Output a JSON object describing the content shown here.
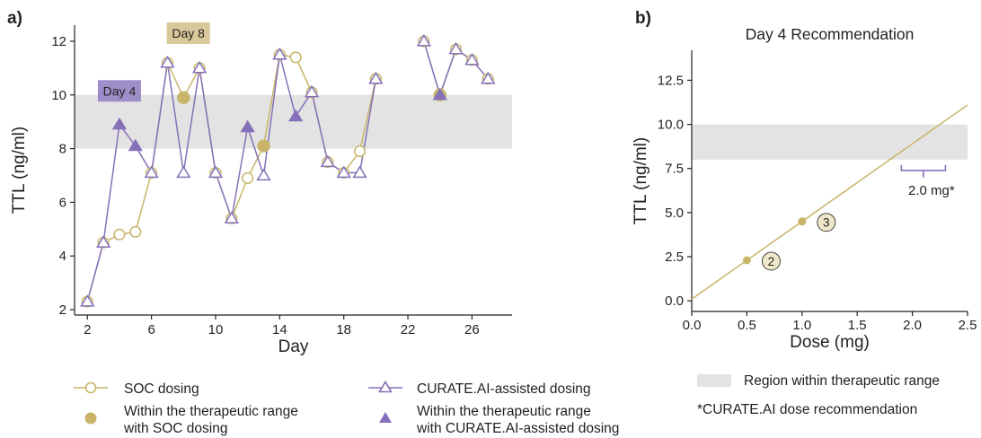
{
  "colors": {
    "soc": "#c8b56a",
    "curate": "#8570b9",
    "band": "#e3e3e3",
    "day8_box": "#d9c99a",
    "day4_box": "#9d8ec9"
  },
  "panels": {
    "a_label": "a)",
    "b_label": "b)"
  },
  "chart_data": [
    {
      "type": "line",
      "panel": "a",
      "xlabel": "Day",
      "ylabel": "TTL (ng/ml)",
      "xlim": [
        1.2,
        28.5
      ],
      "ylim": [
        1.8,
        12.6
      ],
      "xticks": [
        2,
        6,
        10,
        14,
        18,
        22,
        26
      ],
      "yticks": [
        2,
        4,
        6,
        8,
        10,
        12
      ],
      "band": [
        8,
        10
      ],
      "annotations": [
        {
          "text": "Day 8",
          "x": 8.3,
          "y": 12.3
        },
        {
          "text": "Day 4",
          "x": 4.0,
          "y": 10.15
        }
      ],
      "series": [
        {
          "name": "SOC dosing",
          "key": "soc",
          "segments": [
            [
              [
                2,
                2.3
              ],
              [
                3,
                4.5
              ],
              [
                4,
                4.8
              ],
              [
                5,
                4.9
              ],
              [
                6,
                7.1
              ],
              [
                7,
                11.2
              ],
              [
                8,
                9.9
              ],
              [
                9,
                11.0
              ],
              [
                10,
                7.1
              ],
              [
                11,
                5.4
              ],
              [
                12,
                6.9
              ],
              [
                13,
                8.1
              ],
              [
                14,
                11.5
              ],
              [
                15,
                11.4
              ],
              [
                16,
                10.1
              ],
              [
                17,
                7.5
              ],
              [
                18,
                7.1
              ],
              [
                19,
                7.9
              ],
              [
                20,
                10.6
              ]
            ],
            [
              [
                23,
                12.0
              ],
              [
                24,
                10.0
              ],
              [
                25,
                11.7
              ],
              [
                26,
                11.3
              ],
              [
                27,
                10.6
              ]
            ]
          ]
        },
        {
          "name": "CURATE.AI-assisted dosing",
          "key": "curate",
          "segments": [
            [
              [
                2,
                2.3
              ],
              [
                3,
                4.5
              ],
              [
                4,
                8.9
              ],
              [
                5,
                8.1
              ],
              [
                6,
                7.1
              ],
              [
                7,
                11.2
              ],
              [
                8,
                7.1
              ],
              [
                9,
                11.0
              ],
              [
                10,
                7.1
              ],
              [
                11,
                5.4
              ],
              [
                12,
                8.8
              ],
              [
                13,
                7.0
              ],
              [
                14,
                11.5
              ],
              [
                15,
                9.2
              ],
              [
                16,
                10.1
              ],
              [
                17,
                7.5
              ],
              [
                18,
                7.1
              ],
              [
                19,
                7.1
              ],
              [
                20,
                10.6
              ]
            ],
            [
              [
                23,
                12.0
              ],
              [
                24,
                10.0
              ],
              [
                25,
                11.7
              ],
              [
                26,
                11.3
              ],
              [
                27,
                10.6
              ]
            ]
          ]
        }
      ]
    },
    {
      "type": "scatter",
      "panel": "b",
      "title": "Day 4 Recommendation",
      "xlabel": "Dose (mg)",
      "ylabel": "TTL (ng/ml)",
      "xlim": [
        0,
        2.5
      ],
      "ylim": [
        -0.6,
        14.2
      ],
      "xticks": [
        "0.0",
        "0.5",
        "1.0",
        "1.5",
        "2.0",
        "2.5"
      ],
      "yticks": [
        "0.0",
        "2.5",
        "5.0",
        "7.5",
        "10.0",
        "12.5"
      ],
      "band": [
        8,
        10
      ],
      "points": [
        {
          "x": 0.5,
          "y": 2.3,
          "label": "2"
        },
        {
          "x": 1.0,
          "y": 4.5,
          "label": "3"
        }
      ],
      "fit_line": {
        "x": [
          0,
          2.5
        ],
        "y": [
          0.1,
          11.1
        ]
      },
      "recommendation": {
        "x_range": [
          1.9,
          2.3
        ],
        "label": "2.0 mg*"
      }
    }
  ],
  "legend": {
    "soc_open": "SOC dosing",
    "curate_open": "CURATE.AI-assisted dosing",
    "soc_filled_line1": "Within the therapeutic range",
    "soc_filled_line2": "with SOC dosing",
    "curate_filled_line1": "Within the therapeutic range",
    "curate_filled_line2": "with CURATE.AI-assisted dosing",
    "region": "Region within therapeutic range",
    "footnote": "*CURATE.AI dose recommendation"
  }
}
